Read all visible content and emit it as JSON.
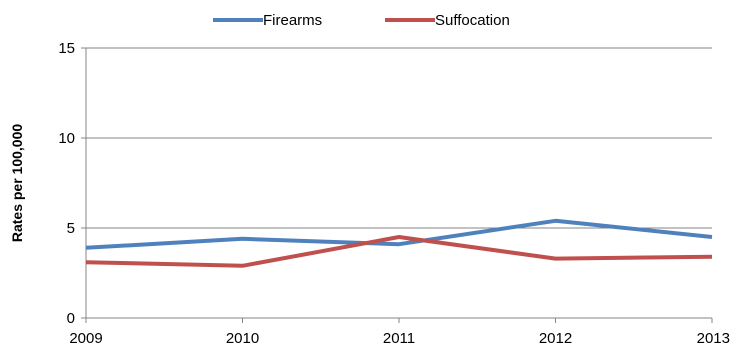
{
  "chart_data": {
    "type": "line",
    "x": [
      "2009",
      "2010",
      "2011",
      "2012",
      "2013"
    ],
    "series": [
      {
        "name": "Firearms",
        "values": [
          3.9,
          4.4,
          4.1,
          5.4,
          4.5
        ],
        "color": "#4F81BD"
      },
      {
        "name": "Suffocation",
        "values": [
          3.1,
          2.9,
          4.5,
          3.3,
          3.4
        ],
        "color": "#C0504D"
      }
    ],
    "ylabel": "Rates per 100,000",
    "ylim": [
      0,
      15
    ],
    "yticks": [
      "0",
      "5",
      "10",
      "15"
    ],
    "grid": true,
    "legend": "top"
  }
}
